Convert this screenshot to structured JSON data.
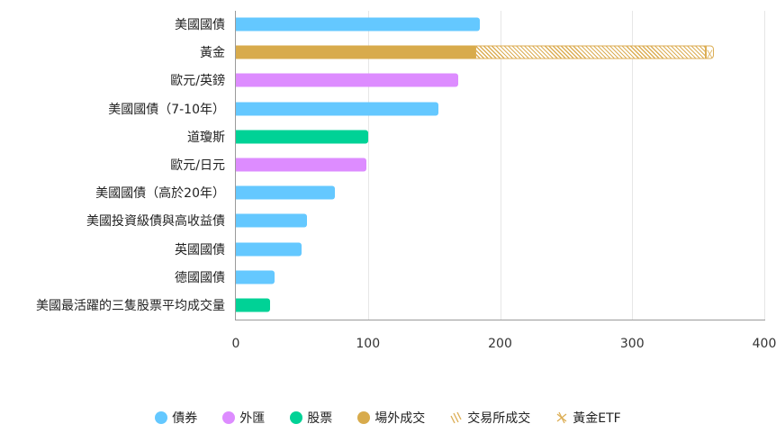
{
  "chart_data": {
    "type": "bar",
    "orientation": "horizontal",
    "stacked": true,
    "title": "",
    "xlabel": "",
    "ylabel": "",
    "xlim": [
      0,
      400
    ],
    "x_ticks": [
      "0",
      "100",
      "200",
      "300",
      "400"
    ],
    "grid": "vertical",
    "legend_position": "bottom",
    "categories": [
      "美國國債",
      "黃金",
      "歐元/英鎊",
      "美國國債（7-10年）",
      "道瓊斯",
      "歐元/日元",
      "美國國債（高於20年）",
      "美國投資級債與高收益債",
      "英國國債",
      "德國國債",
      "美國最活躍的三隻股票平均成交量"
    ],
    "bars": [
      {
        "category": "美國國債",
        "group": "債券",
        "value": 185
      },
      {
        "category": "黃金",
        "group": "場外成交",
        "value": 181,
        "stack": [
          {
            "series": "場外成交",
            "value": 181
          },
          {
            "series": "交易所成交",
            "value": 175
          },
          {
            "series": "黃金ETF",
            "value": 6
          }
        ],
        "total": 362
      },
      {
        "category": "歐元/英鎊",
        "group": "外匯",
        "value": 168
      },
      {
        "category": "美國國債（7-10年）",
        "group": "債券",
        "value": 153
      },
      {
        "category": "道瓊斯",
        "group": "股票",
        "value": 100
      },
      {
        "category": "歐元/日元",
        "group": "外匯",
        "value": 99
      },
      {
        "category": "美國國債（高於20年）",
        "group": "債券",
        "value": 75
      },
      {
        "category": "美國投資級債與高收益債",
        "group": "債券",
        "value": 54
      },
      {
        "category": "英國國債",
        "group": "債券",
        "value": 50
      },
      {
        "category": "德國國債",
        "group": "債券",
        "value": 29
      },
      {
        "category": "美國最活躍的三隻股票平均成交量",
        "group": "股票",
        "value": 26
      }
    ],
    "series": [
      {
        "name": "債券",
        "color": "#64c8ff"
      },
      {
        "name": "外匯",
        "color": "#dd8cff"
      },
      {
        "name": "股票",
        "color": "#00d296"
      },
      {
        "name": "場外成交",
        "color": "#d8ab4c"
      },
      {
        "name": "交易所成交",
        "color": "#dcae55",
        "pattern": "diagonal-hatch"
      },
      {
        "name": "黃金ETF",
        "color": "#dcae55",
        "pattern": "cross-hatch"
      }
    ]
  },
  "labels": {
    "ticks": [
      "0",
      "100",
      "200",
      "300",
      "400"
    ],
    "legend": [
      "債券",
      "外匯",
      "股票",
      "場外成交",
      "交易所成交",
      "黃金ETF"
    ]
  }
}
